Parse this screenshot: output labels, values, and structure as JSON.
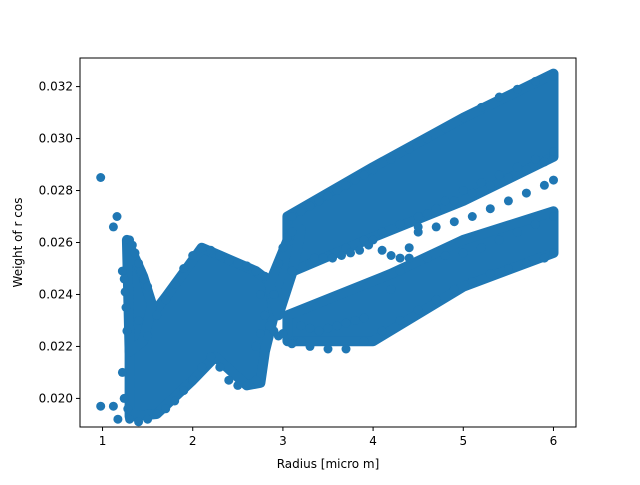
{
  "chart_data": {
    "type": "scatter",
    "title": "",
    "xlabel": "Radius [micro m]",
    "ylabel": "Weight of  r  cos",
    "xlim": [
      0.75,
      6.25
    ],
    "ylim": [
      0.0189,
      0.0331
    ],
    "xticks": [
      1,
      2,
      3,
      4,
      5,
      6
    ],
    "yticks": [
      0.02,
      0.022,
      0.024,
      0.026,
      0.028,
      0.03,
      0.032
    ],
    "xtick_labels": [
      "1",
      "2",
      "3",
      "4",
      "5",
      "6"
    ],
    "ytick_labels": [
      "0.020",
      "0.022",
      "0.024",
      "0.026",
      "0.028",
      "0.030",
      "0.032"
    ],
    "grid": false,
    "marker": "circle",
    "color": "#1f77b4",
    "series": [
      {
        "points": [
          [
            0.98,
            0.0285
          ],
          [
            0.98,
            0.0197
          ],
          [
            1.12,
            0.0266
          ],
          [
            1.16,
            0.027
          ],
          [
            1.12,
            0.0197
          ],
          [
            1.17,
            0.0192
          ],
          [
            1.22,
            0.0249
          ],
          [
            1.24,
            0.0246
          ],
          [
            1.25,
            0.0241
          ],
          [
            1.26,
            0.0235
          ],
          [
            1.27,
            0.0226
          ],
          [
            1.22,
            0.021
          ],
          [
            1.24,
            0.02
          ],
          [
            1.28,
            0.0196
          ],
          [
            1.3,
            0.0261
          ],
          [
            1.33,
            0.0259
          ],
          [
            1.36,
            0.0256
          ],
          [
            1.4,
            0.0252
          ],
          [
            1.43,
            0.0249
          ],
          [
            1.46,
            0.0246
          ],
          [
            1.5,
            0.0243
          ],
          [
            1.3,
            0.0192
          ],
          [
            1.4,
            0.0191
          ],
          [
            1.5,
            0.0192
          ],
          [
            1.6,
            0.0194
          ],
          [
            1.7,
            0.0196
          ],
          [
            1.8,
            0.0199
          ],
          [
            1.9,
            0.0203
          ],
          [
            2.0,
            0.0207
          ],
          [
            2.1,
            0.0212
          ],
          [
            2.2,
            0.0216
          ],
          [
            2.3,
            0.0212
          ],
          [
            2.4,
            0.0207
          ],
          [
            2.5,
            0.0205
          ],
          [
            2.6,
            0.0205
          ],
          [
            2.7,
            0.0207
          ],
          [
            1.4,
            0.023
          ],
          [
            1.5,
            0.0224
          ],
          [
            1.6,
            0.0232
          ],
          [
            1.7,
            0.0238
          ],
          [
            1.8,
            0.0244
          ],
          [
            1.9,
            0.025
          ],
          [
            2.0,
            0.0255
          ],
          [
            2.1,
            0.0258
          ],
          [
            2.2,
            0.0257
          ],
          [
            2.3,
            0.0255
          ],
          [
            2.4,
            0.0253
          ],
          [
            2.5,
            0.0252
          ],
          [
            2.6,
            0.0251
          ],
          [
            2.7,
            0.0249
          ],
          [
            2.8,
            0.0247
          ],
          [
            2.9,
            0.024
          ],
          [
            2.95,
            0.0252
          ],
          [
            3.0,
            0.0258
          ],
          [
            3.05,
            0.0262
          ],
          [
            3.1,
            0.0264
          ],
          [
            2.9,
            0.0226
          ],
          [
            2.95,
            0.0224
          ],
          [
            3.0,
            0.0225
          ],
          [
            3.1,
            0.0222
          ],
          [
            3.2,
            0.0222
          ],
          [
            3.1,
            0.027
          ],
          [
            3.2,
            0.0272
          ],
          [
            3.3,
            0.0274
          ],
          [
            3.4,
            0.0276
          ],
          [
            3.5,
            0.0278
          ],
          [
            3.6,
            0.028
          ],
          [
            3.7,
            0.0282
          ],
          [
            3.8,
            0.0284
          ],
          [
            3.9,
            0.0286
          ],
          [
            4.0,
            0.0288
          ],
          [
            4.2,
            0.0292
          ],
          [
            4.4,
            0.0296
          ],
          [
            4.6,
            0.03
          ],
          [
            4.8,
            0.0304
          ],
          [
            5.0,
            0.0308
          ],
          [
            5.2,
            0.0312
          ],
          [
            5.4,
            0.0316
          ],
          [
            5.6,
            0.0319
          ],
          [
            5.8,
            0.0322
          ],
          [
            6.0,
            0.0324
          ],
          [
            3.1,
            0.0249
          ],
          [
            3.3,
            0.0252
          ],
          [
            3.5,
            0.0255
          ],
          [
            3.7,
            0.0258
          ],
          [
            3.9,
            0.0261
          ],
          [
            4.1,
            0.0264
          ],
          [
            4.3,
            0.0267
          ],
          [
            4.5,
            0.027
          ],
          [
            4.7,
            0.0273
          ],
          [
            4.9,
            0.0276
          ],
          [
            5.1,
            0.0279
          ],
          [
            5.3,
            0.0282
          ],
          [
            5.5,
            0.0285
          ],
          [
            5.7,
            0.0288
          ],
          [
            5.9,
            0.0291
          ],
          [
            6.0,
            0.0293
          ],
          [
            3.1,
            0.0221
          ],
          [
            3.3,
            0.022
          ],
          [
            3.5,
            0.0219
          ],
          [
            3.7,
            0.0219
          ],
          [
            3.9,
            0.0222
          ],
          [
            4.1,
            0.0226
          ],
          [
            4.3,
            0.023
          ],
          [
            4.5,
            0.0234
          ],
          [
            4.7,
            0.0238
          ],
          [
            4.9,
            0.0242
          ],
          [
            5.1,
            0.0245
          ],
          [
            5.3,
            0.0248
          ],
          [
            5.5,
            0.025
          ],
          [
            5.7,
            0.0252
          ],
          [
            5.9,
            0.0254
          ],
          [
            6.0,
            0.0256
          ],
          [
            3.35,
            0.0254
          ],
          [
            3.45,
            0.0254
          ],
          [
            3.55,
            0.0254
          ],
          [
            3.65,
            0.0255
          ],
          [
            3.75,
            0.0256
          ],
          [
            3.85,
            0.0257
          ],
          [
            3.95,
            0.0259
          ],
          [
            3.2,
            0.0228
          ],
          [
            3.3,
            0.0227
          ],
          [
            3.4,
            0.0226
          ],
          [
            3.5,
            0.0227
          ],
          [
            3.6,
            0.0228
          ],
          [
            3.7,
            0.0229
          ],
          [
            3.8,
            0.023
          ],
          [
            3.9,
            0.0231
          ],
          [
            4.0,
            0.0261
          ],
          [
            4.1,
            0.0257
          ],
          [
            4.2,
            0.0255
          ],
          [
            4.3,
            0.0254
          ],
          [
            4.4,
            0.0254
          ],
          [
            4.6,
            0.0254
          ],
          [
            4.8,
            0.0255
          ],
          [
            5.0,
            0.0256
          ],
          [
            5.2,
            0.0258
          ],
          [
            5.4,
            0.0261
          ],
          [
            5.6,
            0.0264
          ],
          [
            5.8,
            0.0267
          ],
          [
            6.0,
            0.027
          ],
          [
            4.2,
            0.0242
          ],
          [
            4.3,
            0.0249
          ],
          [
            4.4,
            0.0258
          ],
          [
            4.5,
            0.0266
          ],
          [
            4.6,
            0.0271
          ],
          [
            4.8,
            0.0276
          ],
          [
            5.0,
            0.028
          ],
          [
            5.2,
            0.0283
          ],
          [
            5.4,
            0.0286
          ],
          [
            5.6,
            0.0289
          ],
          [
            5.8,
            0.0292
          ],
          [
            6.0,
            0.0295
          ],
          [
            4.5,
            0.0264
          ],
          [
            4.7,
            0.0266
          ],
          [
            4.9,
            0.0268
          ],
          [
            5.1,
            0.027
          ],
          [
            5.3,
            0.0273
          ],
          [
            5.5,
            0.0276
          ],
          [
            5.7,
            0.0279
          ],
          [
            5.9,
            0.0282
          ],
          [
            6.0,
            0.0284
          ],
          [
            2.75,
            0.0225
          ],
          [
            2.8,
            0.0232
          ],
          [
            2.75,
            0.024
          ],
          [
            2.85,
            0.0228
          ],
          [
            2.7,
            0.022
          ]
        ]
      }
    ]
  }
}
